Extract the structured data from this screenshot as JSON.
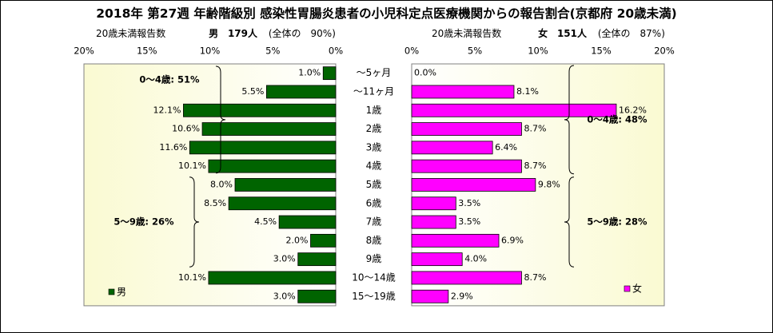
{
  "title": "2018年 第27週 年齢階級別 感染性胃腸炎患者の小児科定点医療機関からの報告割合(京都府 20歳未満)",
  "male_header": {
    "reports_label": "20歳未満報告数",
    "sex": "男",
    "count": "179人",
    "share": "(全体の　90%)"
  },
  "female_header": {
    "reports_label": "20歳未満報告数",
    "sex": "女",
    "count": "151人",
    "share": "(全体の　87%)"
  },
  "chart_data": {
    "type": "bar",
    "orientation": "horizontal-butterfly",
    "categories": [
      "～5ヶ月",
      "～11ヶ月",
      "1歳",
      "2歳",
      "3歳",
      "4歳",
      "5歳",
      "6歳",
      "7歳",
      "8歳",
      "9歳",
      "10～14歳",
      "15～19歳"
    ],
    "value_unit": "%",
    "series": [
      {
        "name": "男",
        "color": "#006400",
        "values": [
          1.0,
          5.5,
          12.1,
          10.6,
          11.6,
          10.1,
          8.0,
          8.5,
          4.5,
          2.0,
          3.0,
          10.1,
          3.0
        ],
        "labels": [
          "1.0%",
          "5.5%",
          "12.1%",
          "10.6%",
          "11.6%",
          "10.1%",
          "8.0%",
          "8.5%",
          "4.5%",
          "2.0%",
          "3.0%",
          "10.1%",
          "3.0%"
        ]
      },
      {
        "name": "女",
        "color": "#ff00ff",
        "values": [
          0.0,
          8.1,
          16.2,
          8.7,
          6.4,
          8.7,
          9.8,
          3.5,
          3.5,
          6.9,
          4.0,
          8.7,
          2.9
        ],
        "labels": [
          "0.0%",
          "8.1%",
          "16.2%",
          "8.7%",
          "6.4%",
          "8.7%",
          "9.8%",
          "3.5%",
          "3.5%",
          "6.9%",
          "4.0%",
          "8.7%",
          "2.9%"
        ]
      }
    ],
    "xlim": [
      0,
      20
    ],
    "ticks": [
      "0%",
      "5%",
      "10%",
      "15%",
      "20%"
    ],
    "male_groups": [
      {
        "label": "0～4歳: 51%",
        "from": 0,
        "to": 5
      },
      {
        "label": "5～9歳: 26%",
        "from": 6,
        "to": 10
      }
    ],
    "female_groups": [
      {
        "label": "0～4歳: 48%",
        "from": 0,
        "to": 5
      },
      {
        "label": "5～9歳: 28%",
        "from": 6,
        "to": 10
      }
    ],
    "legend_position": "bottom-left"
  }
}
